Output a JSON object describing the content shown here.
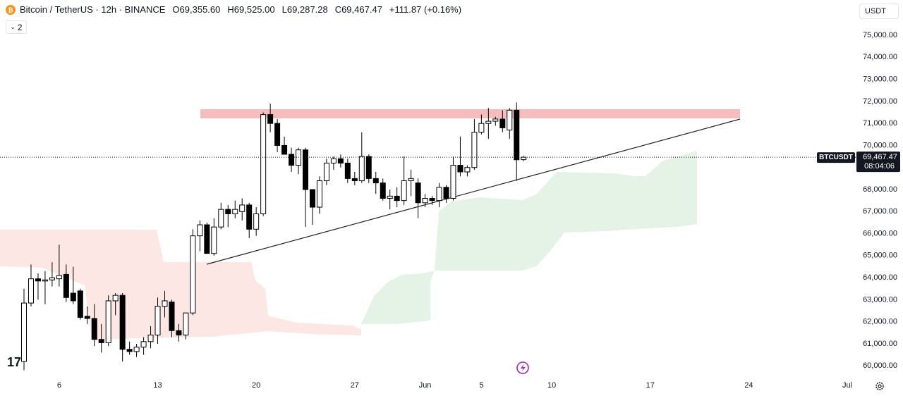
{
  "chart_data": {
    "type": "candlestick",
    "title": "Bitcoin / TetherUS · 12h · BINANCE",
    "header": {
      "open_label": "O",
      "open": "69,355.60",
      "high_label": "H",
      "high": "69,525.00",
      "low_label": "L",
      "low": "69,287.28",
      "close_label": "C",
      "close": "69,467.47",
      "change": "+111.87 (+0.16%)"
    },
    "currency": "USDT",
    "indicator_count": "2",
    "last_price": {
      "symbol": "BTCUSDT",
      "value": 69467.47,
      "label": "69,467.47",
      "countdown": "08:04:06"
    },
    "categories": [
      null,
      null,
      null,
      null,
      null,
      "6",
      null,
      null,
      null,
      null,
      null,
      null,
      null,
      null,
      null,
      null,
      null,
      null,
      null,
      "13",
      null,
      null,
      null,
      null,
      null,
      null,
      null,
      null,
      null,
      null,
      null,
      null,
      null,
      "20",
      null,
      null,
      null,
      null,
      null,
      null,
      null,
      null,
      null,
      null,
      null,
      null,
      null,
      "27",
      null,
      null,
      null,
      null,
      null,
      null,
      null,
      null,
      null,
      "Jun",
      null,
      null,
      null,
      null,
      null,
      null,
      null,
      "5",
      null,
      null,
      null,
      null,
      null,
      null,
      null,
      null,
      null,
      "10",
      null,
      null,
      null,
      null,
      null,
      null,
      null,
      null,
      null,
      null,
      null,
      null,
      null,
      "17",
      null,
      null,
      null,
      null,
      null,
      null,
      null,
      null,
      null,
      null,
      null,
      null,
      null,
      "24",
      null,
      null,
      null,
      null,
      null,
      null,
      null,
      null,
      null,
      null,
      null,
      null,
      null,
      "Jul"
    ],
    "open": [
      60200,
      62850,
      63950,
      63850,
      63900,
      63950,
      64150,
      63300,
      63400,
      62250,
      62150,
      61200,
      61050,
      62950,
      63200,
      60750,
      60650,
      60850,
      61100,
      61400,
      62700,
      62900,
      61600,
      61400,
      62400,
      65900,
      66400,
      65100,
      66300,
      67100,
      66900,
      67000,
      67300,
      66200,
      66900,
      71400,
      71000,
      70000,
      69600,
      69100,
      69800,
      68000,
      67200,
      68400,
      69200,
      69400,
      69200,
      68500,
      68400,
      69500,
      68500,
      68300,
      67600,
      67700,
      67500,
      68400,
      68300,
      67400,
      67600,
      67500,
      68100,
      67600,
      69100,
      68800,
      69000,
      70600,
      71000,
      71100,
      71200,
      70700,
      71600,
      69355.6,
      null,
      null,
      null,
      null,
      null,
      null,
      null,
      null,
      null,
      null,
      null,
      null,
      null,
      null,
      null,
      null,
      null,
      null,
      null,
      null,
      null,
      null,
      null,
      null,
      null,
      null,
      null,
      null,
      null,
      null,
      null,
      null,
      null,
      null,
      null,
      null,
      null,
      null,
      null,
      null,
      null,
      null,
      null,
      null,
      null,
      null
    ],
    "high": [
      63500,
      64600,
      64200,
      64300,
      64700,
      65500,
      64600,
      64500,
      63500,
      62700,
      62800,
      61900,
      63200,
      63300,
      63300,
      61100,
      61000,
      61300,
      61800,
      63100,
      63400,
      63000,
      61900,
      62400,
      66200,
      66600,
      66500,
      66700,
      67400,
      67300,
      67500,
      67600,
      67400,
      67200,
      71500,
      71900,
      71200,
      70400,
      69900,
      69900,
      69900,
      68000,
      68600,
      69400,
      69500,
      69600,
      69400,
      68800,
      70600,
      69600,
      68800,
      68500,
      68000,
      68100,
      69500,
      68900,
      68500,
      67800,
      67700,
      68300,
      68200,
      69500,
      70400,
      69100,
      71200,
      71400,
      71700,
      71300,
      71600,
      71700,
      71950,
      69525,
      null,
      null,
      null,
      null,
      null,
      null,
      null,
      null,
      null,
      null,
      null,
      null,
      null,
      null,
      null,
      null,
      null,
      null,
      null,
      null,
      null,
      null,
      null,
      null,
      null,
      null,
      null,
      null,
      null,
      null,
      null,
      null,
      null,
      null,
      null,
      null,
      null,
      null,
      null,
      null,
      null,
      null,
      null,
      null,
      null,
      null
    ],
    "low": [
      59800,
      62700,
      63000,
      62800,
      63600,
      63600,
      62900,
      62800,
      62100,
      61900,
      60900,
      60600,
      60900,
      62300,
      60200,
      60500,
      60400,
      60500,
      60800,
      61000,
      62200,
      61300,
      61100,
      61200,
      62300,
      65200,
      65200,
      65000,
      66200,
      66300,
      66700,
      66600,
      65800,
      65900,
      66800,
      70600,
      69700,
      69600,
      68800,
      68700,
      66300,
      66400,
      66900,
      68200,
      68900,
      69000,
      68300,
      68200,
      68300,
      68300,
      67800,
      67500,
      67100,
      67200,
      67300,
      67700,
      66700,
      67200,
      67300,
      67200,
      67400,
      67500,
      68600,
      68600,
      68900,
      70500,
      70300,
      70900,
      70600,
      70300,
      68400,
      69287.28,
      null,
      null,
      null,
      null,
      null,
      null,
      null,
      null,
      null,
      null,
      null,
      null,
      null,
      null,
      null,
      null,
      null,
      null,
      null,
      null,
      null,
      null,
      null,
      null,
      null,
      null,
      null,
      null,
      null,
      null,
      null,
      null,
      null,
      null,
      null,
      null,
      null,
      null,
      null,
      null,
      null,
      null,
      null,
      null,
      null,
      null
    ],
    "close": [
      62850,
      63950,
      63850,
      63900,
      64000,
      64100,
      63100,
      62950,
      62200,
      62150,
      61200,
      61050,
      62950,
      63200,
      60750,
      60650,
      60850,
      61100,
      61400,
      62700,
      62950,
      61600,
      61400,
      62400,
      65900,
      66400,
      65100,
      66300,
      67100,
      66900,
      67100,
      67300,
      66200,
      66900,
      71400,
      71000,
      70000,
      69600,
      69100,
      69800,
      68000,
      67200,
      68400,
      69200,
      69400,
      69200,
      68500,
      68400,
      69500,
      68500,
      68300,
      67600,
      67700,
      67500,
      68400,
      68500,
      67400,
      67600,
      67500,
      68100,
      67600,
      69100,
      68800,
      69000,
      70600,
      71000,
      71100,
      71200,
      70800,
      71600,
      69350,
      69467.47,
      null,
      null,
      null,
      null,
      null,
      null,
      null,
      null,
      null,
      null,
      null,
      null,
      null,
      null,
      null,
      null,
      null,
      null,
      null,
      null,
      null,
      null,
      null,
      null,
      null,
      null,
      null,
      null,
      null,
      null,
      null,
      null,
      null,
      null,
      null,
      null,
      null,
      null,
      null,
      null,
      null,
      null,
      null,
      null,
      null,
      null
    ],
    "up_color": "#ffffff",
    "down_color": "#000000",
    "border_color": "#000000",
    "ylim": [
      59400,
      76600
    ],
    "yticks": [
      {
        "value": 60000,
        "label": "60,000.00"
      },
      {
        "value": 61000,
        "label": "61,000.00"
      },
      {
        "value": 62000,
        "label": "62,000.00"
      },
      {
        "value": 63000,
        "label": "63,000.00"
      },
      {
        "value": 64000,
        "label": "64,000.00"
      },
      {
        "value": 65000,
        "label": "65,000.00"
      },
      {
        "value": 66000,
        "label": "66,000.00"
      },
      {
        "value": 67000,
        "label": "67,000.00"
      },
      {
        "value": 68000,
        "label": "68,000.00"
      },
      {
        "value": 69000,
        "label": "69,000.00"
      },
      {
        "value": 70000,
        "label": "70,000.00"
      },
      {
        "value": 71000,
        "label": "71,000.00"
      },
      {
        "value": 72000,
        "label": "72,000.00"
      },
      {
        "value": 73000,
        "label": "73,000.00"
      },
      {
        "value": 74000,
        "label": "74,000.00"
      },
      {
        "value": 75000,
        "label": "75,000.00"
      }
    ],
    "grid": false
  }
}
